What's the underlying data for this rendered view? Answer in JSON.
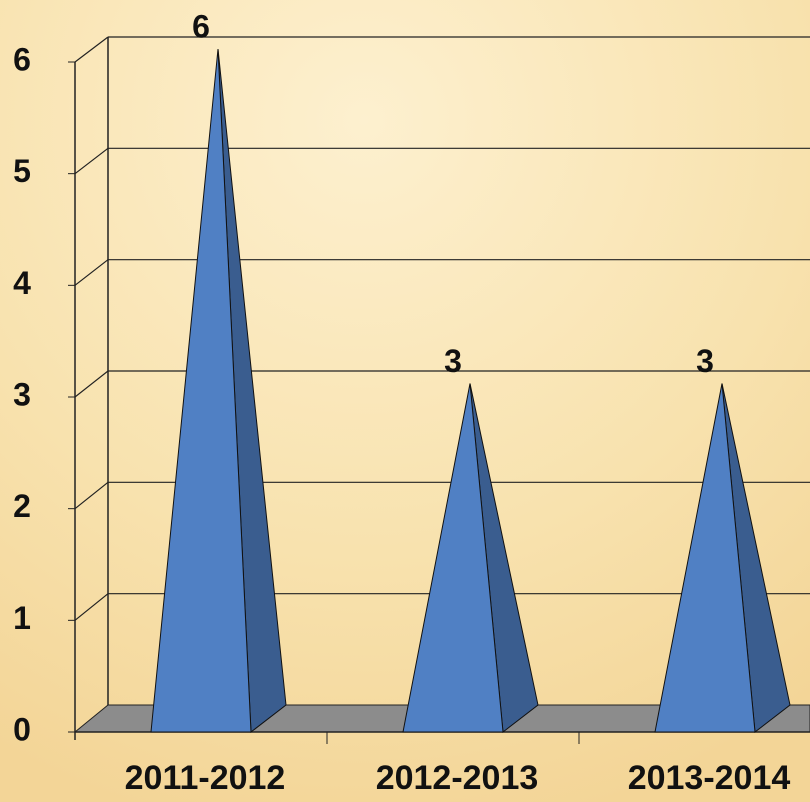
{
  "chart_data": {
    "type": "pyramid",
    "categories": [
      "2011-2012",
      "2012-2013",
      "2013-2014"
    ],
    "values": [
      6,
      3,
      3
    ],
    "color": "#5080c4",
    "ylim": [
      0,
      6
    ],
    "yticks": [
      0,
      1,
      2,
      3,
      4,
      5,
      6
    ],
    "grid": true
  }
}
